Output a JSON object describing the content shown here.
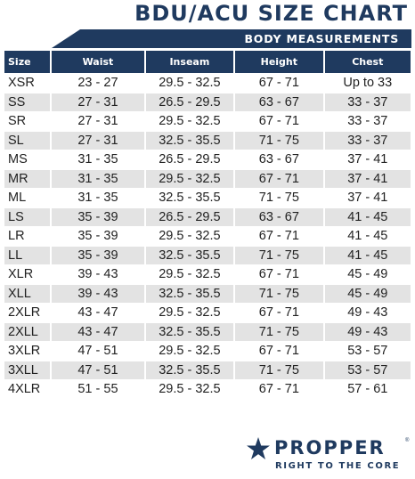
{
  "title": "BDU/ACU SIZE CHART",
  "band_label": "BODY MEASUREMENTS",
  "brand_color": "#1f3a5f",
  "columns": [
    "Size",
    "Waist",
    "Inseam",
    "Height",
    "Chest"
  ],
  "rows": [
    [
      "XSR",
      "23 - 27",
      "29.5 - 32.5",
      "67 - 71",
      "Up to 33"
    ],
    [
      "SS",
      "27 - 31",
      "26.5 - 29.5",
      "63 - 67",
      "33 - 37"
    ],
    [
      "SR",
      "27 - 31",
      "29.5 - 32.5",
      "67 - 71",
      "33 - 37"
    ],
    [
      "SL",
      "27 - 31",
      "32.5 - 35.5",
      "71 - 75",
      "33 - 37"
    ],
    [
      "MS",
      "31 - 35",
      "26.5 - 29.5",
      "63 - 67",
      "37 - 41"
    ],
    [
      "MR",
      "31 - 35",
      "29.5 - 32.5",
      "67 - 71",
      "37 - 41"
    ],
    [
      "ML",
      "31 - 35",
      "32.5 - 35.5",
      "71 - 75",
      "37 - 41"
    ],
    [
      "LS",
      "35 - 39",
      "26.5 - 29.5",
      "63 - 67",
      "41 - 45"
    ],
    [
      "LR",
      "35 - 39",
      "29.5 - 32.5",
      "67 - 71",
      "41 - 45"
    ],
    [
      "LL",
      "35 - 39",
      "32.5 - 35.5",
      "71 - 75",
      "41 - 45"
    ],
    [
      "XLR",
      "39 - 43",
      "29.5 - 32.5",
      "67 - 71",
      "45 - 49"
    ],
    [
      "XLL",
      "39 - 43",
      "32.5 - 35.5",
      "71 - 75",
      "45 - 49"
    ],
    [
      "2XLR",
      "43 - 47",
      "29.5 - 32.5",
      "67 - 71",
      "49 - 43"
    ],
    [
      "2XLL",
      "43 - 47",
      "32.5 - 35.5",
      "71 - 75",
      "49 - 43"
    ],
    [
      "3XLR",
      "47 - 51",
      "29.5 - 32.5",
      "67 - 71",
      "53 - 57"
    ],
    [
      "3XLL",
      "47 - 51",
      "32.5 - 35.5",
      "71 - 75",
      "53 - 57"
    ],
    [
      "4XLR",
      "51 - 55",
      "29.5 - 32.5",
      "67 - 71",
      "57 - 61"
    ]
  ],
  "logo": {
    "icon": "star-icon",
    "brand": "PROPPER",
    "registered": "®",
    "tagline": "RIGHT TO THE CORE"
  }
}
